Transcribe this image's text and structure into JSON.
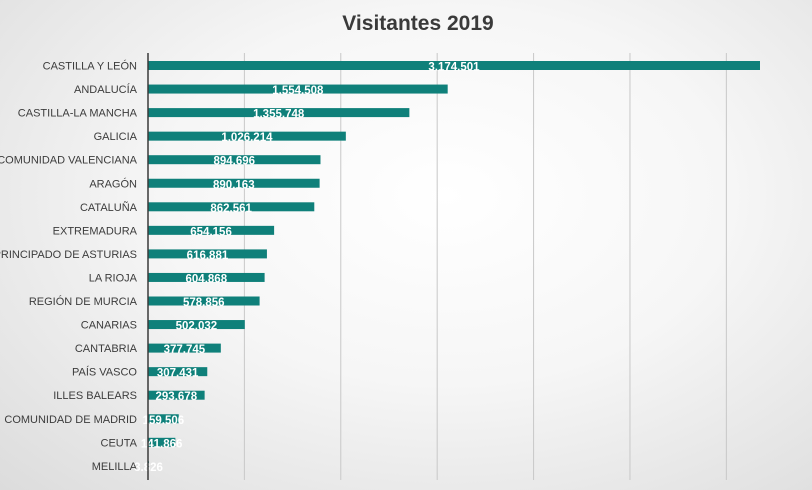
{
  "chart_data": {
    "type": "bar",
    "orientation": "horizontal",
    "title": "Visitantes 2019",
    "categories": [
      "CASTILLA Y LEÓN",
      "ANDALUCÍA",
      "CASTILLA-LA MANCHA",
      "GALICIA",
      "COMUNIDAD VALENCIANA",
      "ARAGÓN",
      "CATALUÑA",
      "EXTREMADURA",
      "PRINCIPADO DE ASTURIAS",
      "LA RIOJA",
      "REGIÓN DE MURCIA",
      "CANARIAS",
      "CANTABRIA",
      "PAÍS VASCO",
      "ILLES BALEARS",
      "COMUNIDAD DE MADRID",
      "CEUTA",
      "MELILLA"
    ],
    "values": [
      3174501,
      1554508,
      1355748,
      1026214,
      894696,
      890163,
      862561,
      654156,
      616881,
      604868,
      578856,
      502032,
      377745,
      307431,
      293678,
      159506,
      141866,
      3826
    ],
    "value_labels": [
      "3.174.501",
      "1.554.508",
      "1.355.748",
      "1.026.214",
      "894.696",
      "890.163",
      "862.561",
      "654.156",
      "616.881",
      "604.868",
      "578.856",
      "502.032",
      "377.745",
      "307.431",
      "293.678",
      "159.506",
      "141.866",
      "3.826"
    ],
    "xlim": [
      0,
      3500000
    ],
    "grid": true,
    "legend": "none",
    "colors": {
      "bar": "#0f807a",
      "value_label": "#ffffff"
    }
  }
}
